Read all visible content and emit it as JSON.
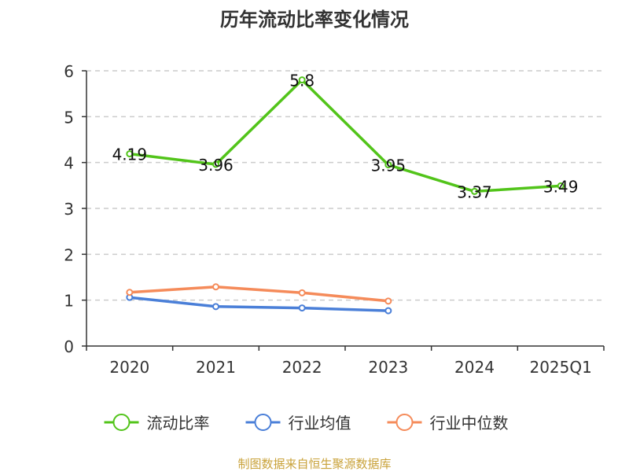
{
  "chart_data": {
    "type": "line",
    "title": "历年流动比率变化情况",
    "source": "制图数据来自恒生聚源数据库",
    "categories": [
      "2020",
      "2021",
      "2022",
      "2023",
      "2024",
      "2025Q1"
    ],
    "y_ticks": [
      "0",
      "1",
      "2",
      "3",
      "4",
      "5",
      "6"
    ],
    "ylim": [
      0,
      6
    ],
    "grid": true,
    "legend_position": "bottom",
    "series": [
      {
        "name": "流动比率",
        "color": "#52c41a",
        "values": [
          4.19,
          3.96,
          5.8,
          3.95,
          3.37,
          3.49
        ],
        "labels": [
          "4.19",
          "3.96",
          "5.8",
          "3.95",
          "3.37",
          "3.49"
        ]
      },
      {
        "name": "行业均值",
        "color": "#4a7fd8",
        "values": [
          1.06,
          0.86,
          0.83,
          0.77,
          null,
          null
        ]
      },
      {
        "name": "行业中位数",
        "color": "#f58b5a",
        "values": [
          1.17,
          1.29,
          1.16,
          0.98,
          null,
          null
        ]
      }
    ]
  }
}
